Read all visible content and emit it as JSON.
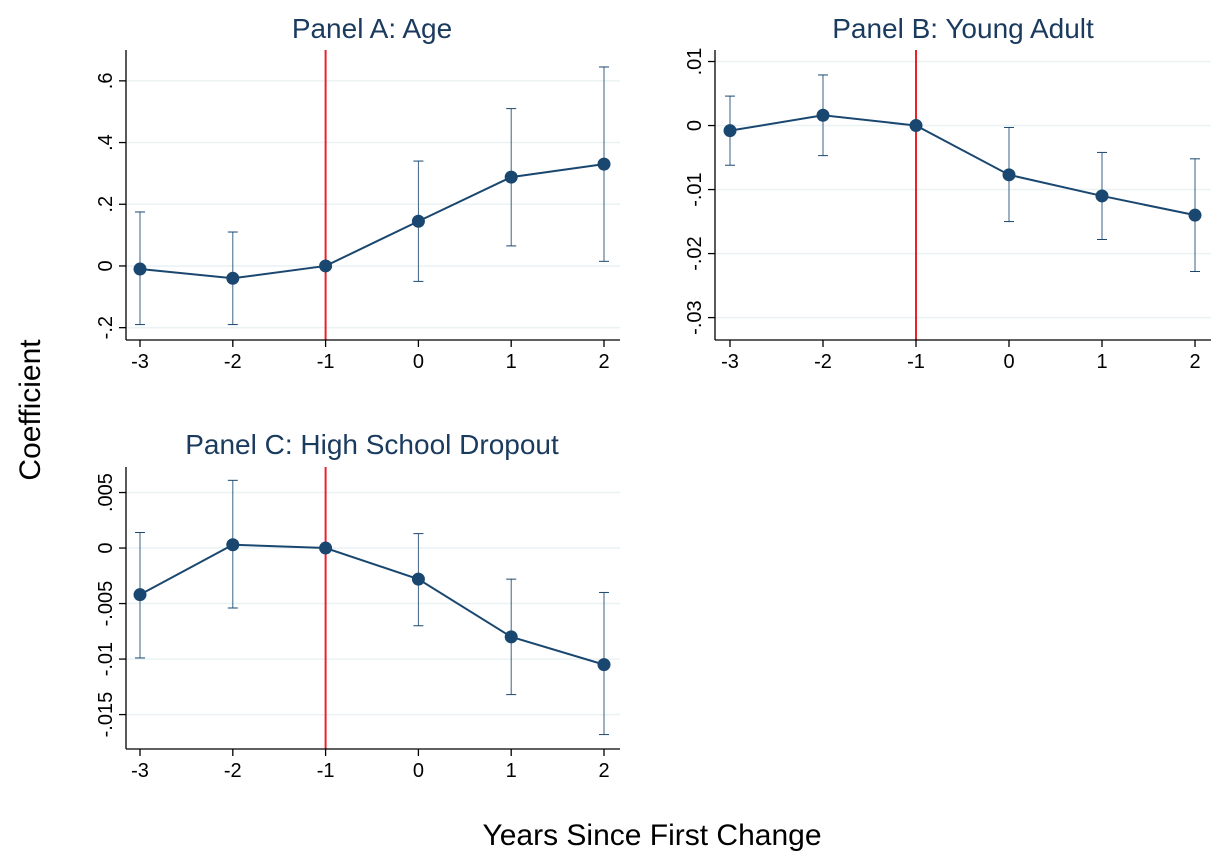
{
  "figure": {
    "ylabel": "Coefficient",
    "xlabel": "Years Since First Change"
  },
  "colors": {
    "series": "#1a476f",
    "reference_line": "#e8212b",
    "grid": "#eaf2f3",
    "axis": "#000000",
    "title": "#1a3a5e"
  },
  "chart_data": [
    {
      "type": "line",
      "title": "Panel A: Age",
      "x": [
        -3,
        -2,
        -1,
        0,
        1,
        2
      ],
      "x_tick_labels": [
        "-3",
        "-2",
        "-1",
        "0",
        "1",
        "2"
      ],
      "series": [
        {
          "values": [
            -0.01,
            -0.04,
            0.0,
            0.145,
            0.288,
            0.33
          ],
          "ci_low": [
            -0.19,
            -0.19,
            0.0,
            -0.05,
            0.065,
            0.015
          ],
          "ci_high": [
            0.175,
            0.11,
            0.0,
            0.34,
            0.51,
            0.645
          ]
        }
      ],
      "y_ticks": [
        -0.2,
        0,
        0.2,
        0.4,
        0.6
      ],
      "y_tick_labels": [
        "-.2",
        "0",
        ".2",
        ".4",
        ".6"
      ],
      "ylim": [
        -0.24,
        0.7
      ],
      "reference_line_x": -1,
      "grid": true
    },
    {
      "type": "line",
      "title": "Panel B: Young Adult",
      "x": [
        -3,
        -2,
        -1,
        0,
        1,
        2
      ],
      "x_tick_labels": [
        "-3",
        "-2",
        "-1",
        "0",
        "1",
        "2"
      ],
      "series": [
        {
          "values": [
            -0.0008,
            0.0016,
            0.0,
            -0.0077,
            -0.011,
            -0.014
          ],
          "ci_low": [
            -0.0062,
            -0.0047,
            0.0,
            -0.015,
            -0.0178,
            -0.0228
          ],
          "ci_high": [
            0.0046,
            0.0079,
            0.0,
            -0.0003,
            -0.0042,
            -0.0052
          ]
        }
      ],
      "y_ticks": [
        -0.03,
        -0.02,
        -0.01,
        0,
        0.01
      ],
      "y_tick_labels": [
        "-.03",
        "-.02",
        "-.01",
        "0",
        ".01"
      ],
      "ylim": [
        -0.0335,
        0.0118
      ],
      "reference_line_x": -1,
      "grid": true
    },
    {
      "type": "line",
      "title": "Panel C: High School Dropout",
      "x": [
        -3,
        -2,
        -1,
        0,
        1,
        2
      ],
      "x_tick_labels": [
        "-3",
        "-2",
        "-1",
        "0",
        "1",
        "2"
      ],
      "series": [
        {
          "values": [
            -0.0042,
            0.0003,
            0.0,
            -0.0028,
            -0.008,
            -0.0105
          ],
          "ci_low": [
            -0.0099,
            -0.0054,
            0.0,
            -0.007,
            -0.0132,
            -0.0168
          ],
          "ci_high": [
            0.0014,
            0.0061,
            0.0,
            0.0013,
            -0.0028,
            -0.004
          ]
        }
      ],
      "y_ticks": [
        -0.015,
        -0.01,
        -0.005,
        0,
        0.005
      ],
      "y_tick_labels": [
        "-.015",
        "-.01",
        "-.005",
        "0",
        ".005"
      ],
      "ylim": [
        -0.0181,
        0.0073
      ],
      "reference_line_x": -1,
      "grid": true
    }
  ]
}
